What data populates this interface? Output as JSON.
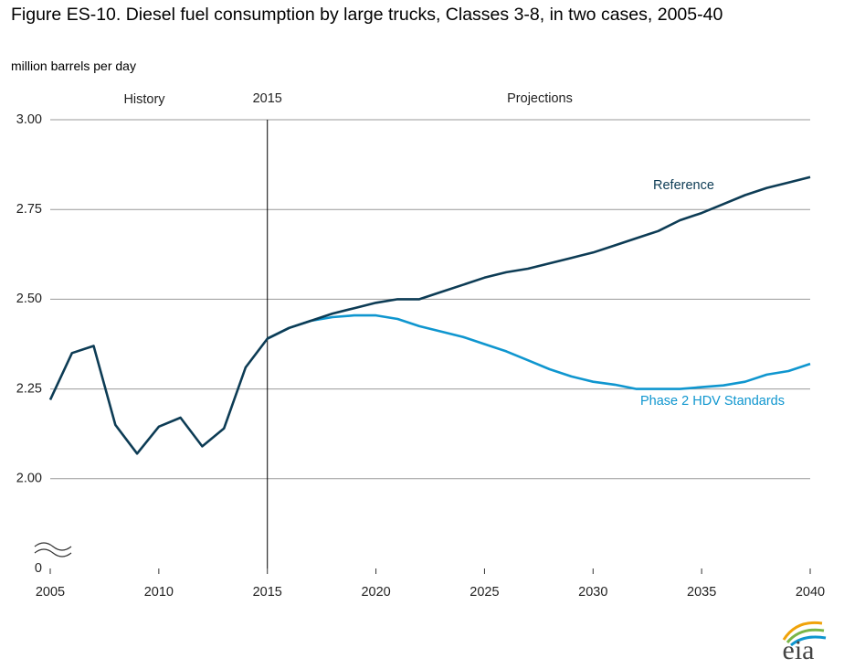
{
  "logo": "eia",
  "chart_data": {
    "type": "line",
    "title": "Figure ES-10. Diesel fuel consumption by large trucks, Classes 3-8, in two cases, 2005-40",
    "y_label": "million barrels per day",
    "annotations": [
      "History",
      "Projections"
    ],
    "divider_x": 2015,
    "x": [
      2005,
      2006,
      2007,
      2008,
      2009,
      2010,
      2011,
      2012,
      2013,
      2014,
      2015,
      2016,
      2017,
      2018,
      2019,
      2020,
      2021,
      2022,
      2023,
      2024,
      2025,
      2026,
      2027,
      2028,
      2029,
      2030,
      2031,
      2032,
      2033,
      2034,
      2035,
      2036,
      2037,
      2038,
      2039,
      2040
    ],
    "xlim": [
      2005,
      2040
    ],
    "xticks": [
      2005,
      2010,
      2015,
      2020,
      2025,
      2030,
      2035,
      2040
    ],
    "ylim": [
      1.75,
      3
    ],
    "axis_break": true,
    "yticks": [
      0,
      {
        "value": 2,
        "label": "2.00"
      },
      {
        "value": 2.25,
        "label": "2.25"
      },
      {
        "value": 2.5,
        "label": "2.50"
      },
      {
        "value": 2.75,
        "label": "2.75"
      },
      {
        "value": 3,
        "label": "3.00"
      }
    ],
    "grid": true,
    "series": [
      {
        "name": "Phase 2 HDV Standards",
        "color": "#0f96cf",
        "values": [
          null,
          null,
          null,
          null,
          null,
          null,
          null,
          null,
          null,
          null,
          2.39,
          2.42,
          2.44,
          2.45,
          2.455,
          2.455,
          2.445,
          2.425,
          2.41,
          2.395,
          2.375,
          2.355,
          2.33,
          2.305,
          2.285,
          2.27,
          2.262,
          2.25,
          2.25,
          2.25,
          2.255,
          2.26,
          2.27,
          2.29,
          2.3,
          2.32
        ]
      },
      {
        "name": "Reference",
        "color": "#0d3c55",
        "values": [
          2.22,
          2.35,
          2.37,
          2.15,
          2.07,
          2.145,
          2.17,
          2.09,
          2.14,
          2.31,
          2.39,
          2.42,
          2.44,
          2.46,
          2.475,
          2.49,
          2.5,
          2.5,
          2.52,
          2.54,
          2.56,
          2.575,
          2.585,
          2.6,
          2.615,
          2.63,
          2.65,
          2.67,
          2.69,
          2.72,
          2.74,
          2.765,
          2.79,
          2.81,
          2.825,
          2.84
        ]
      }
    ]
  }
}
